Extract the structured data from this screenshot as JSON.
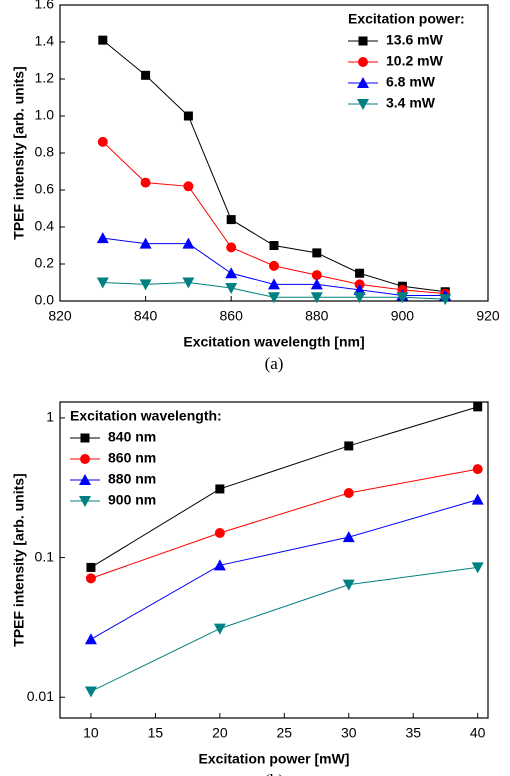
{
  "chart_data": [
    {
      "type": "line",
      "caption": "(a)",
      "x_label": "Excitation wavelength [nm]",
      "y_label": "TPEF intensity [arb. units]",
      "legend_title": "Excitation power:",
      "legend": "upper right",
      "x": [
        830,
        840,
        850,
        860,
        870,
        880,
        890,
        900,
        910
      ],
      "xlim": [
        820,
        920
      ],
      "xticks": [
        820,
        840,
        860,
        880,
        900,
        920
      ],
      "ylim": [
        0,
        1.6
      ],
      "yticks": [
        {
          "value": 0,
          "label": "0.0"
        },
        {
          "value": 0.2,
          "label": "0.2"
        },
        {
          "value": 0.4,
          "label": "0.4"
        },
        {
          "value": 0.6,
          "label": "0.6"
        },
        {
          "value": 0.8,
          "label": "0.8"
        },
        {
          "value": 1,
          "label": "1.0"
        },
        {
          "value": 1.2,
          "label": "1.2"
        },
        {
          "value": 1.4,
          "label": "1.4"
        },
        {
          "value": 1.6,
          "label": "1.6"
        }
      ],
      "series": [
        {
          "name": "13.6 mW",
          "color": "#000000",
          "marker": "square",
          "values": [
            1.41,
            1.22,
            1.0,
            0.44,
            0.3,
            0.26,
            0.15,
            0.08,
            0.05
          ]
        },
        {
          "name": "10.2 mW",
          "color": "#ff0000",
          "marker": "circle",
          "values": [
            0.86,
            0.64,
            0.62,
            0.29,
            0.19,
            0.14,
            0.09,
            0.06,
            0.04
          ]
        },
        {
          "name": "6.8 mW",
          "color": "#0000ff",
          "marker": "triangle-up",
          "values": [
            0.34,
            0.31,
            0.31,
            0.15,
            0.09,
            0.09,
            0.06,
            0.03,
            0.03
          ]
        },
        {
          "name": "3.4 mW",
          "color": "#008080",
          "marker": "triangle-down",
          "values": [
            0.1,
            0.09,
            0.1,
            0.07,
            0.02,
            0.02,
            0.02,
            0.02,
            0.01
          ]
        }
      ]
    },
    {
      "type": "line",
      "caption": "(b)",
      "x_label": "Excitation power [mW]",
      "y_label": "TPEF intensity [arb. units]",
      "legend_title": "Excitation wavelength:",
      "legend": "upper left",
      "yscale": "log",
      "x": [
        10,
        20,
        30,
        40
      ],
      "xlim": [
        7.6,
        40.8
      ],
      "xticks": [
        10,
        15,
        20,
        25,
        30,
        35,
        40
      ],
      "ylim": [
        0.0071,
        1.3
      ],
      "yticks": [
        0.01,
        0.1,
        1
      ],
      "series": [
        {
          "name": "840 nm",
          "color": "#000000",
          "marker": "square",
          "values": [
            0.085,
            0.31,
            0.63,
            1.2
          ]
        },
        {
          "name": "860 nm",
          "color": "#ff0000",
          "marker": "circle",
          "values": [
            0.071,
            0.15,
            0.29,
            0.43
          ]
        },
        {
          "name": "880 nm",
          "color": "#0000ff",
          "marker": "triangle-up",
          "values": [
            0.026,
            0.088,
            0.14,
            0.26
          ]
        },
        {
          "name": "900 nm",
          "color": "#008080",
          "marker": "triangle-down",
          "values": [
            0.011,
            0.031,
            0.064,
            0.085
          ]
        }
      ]
    }
  ]
}
